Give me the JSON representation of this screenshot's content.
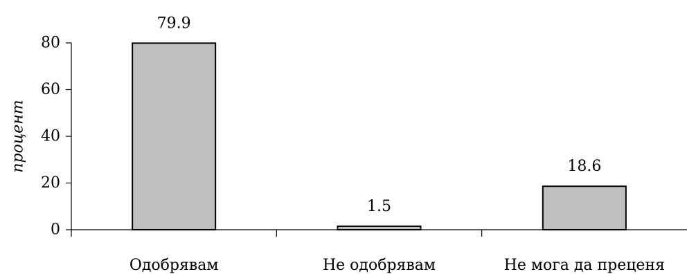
{
  "chart_data": {
    "type": "bar",
    "categories": [
      "Одобрявам",
      "Не одобрявам",
      "Не мога да преценя"
    ],
    "values": [
      79.9,
      1.5,
      18.6
    ],
    "value_labels": [
      "79.9",
      "1.5",
      "18.6"
    ],
    "title": "",
    "xlabel": "",
    "ylabel": "процент",
    "ylim": [
      0,
      80
    ],
    "yticks": [
      0,
      20,
      40,
      60,
      80
    ],
    "ytick_labels": [
      "0",
      "20",
      "40",
      "60",
      "80"
    ],
    "grid": false,
    "legend": "none",
    "colors": {
      "bar_fill": "#bfbfbf",
      "bar_stroke": "#000000",
      "axis": "#000000"
    }
  }
}
